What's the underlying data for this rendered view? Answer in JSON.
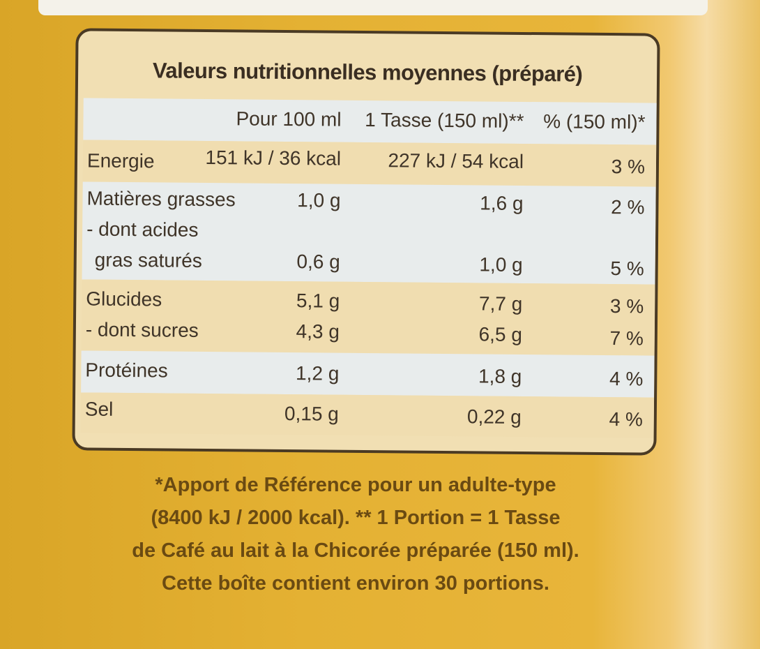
{
  "table": {
    "title": "Valeurs nutritionnelles moyennes (préparé)",
    "headers": [
      "Pour 100 ml",
      "1 Tasse (150 ml)**",
      "% (150 ml)*"
    ],
    "rows": [
      {
        "label": "Energie",
        "per100": "151 kJ / 36 kcal",
        "perCup": "227 kJ / 54 kcal",
        "pct": "3 %"
      },
      {
        "label": "Matières grasses",
        "per100": "1,0 g",
        "perCup": "1,6 g",
        "pct": "2 %"
      },
      {
        "label": "- dont acides",
        "per100": "",
        "perCup": "",
        "pct": ""
      },
      {
        "label": "gras saturés",
        "per100": "0,6 g",
        "perCup": "1,0 g",
        "pct": "5 %"
      },
      {
        "label": "Glucides",
        "per100": "5,1 g",
        "perCup": "7,7 g",
        "pct": "3 %"
      },
      {
        "label": "- dont sucres",
        "per100": "4,3 g",
        "perCup": "6,5 g",
        "pct": "7 %"
      },
      {
        "label": "Protéines",
        "per100": "1,2 g",
        "perCup": "1,8 g",
        "pct": "4 %"
      },
      {
        "label": "Sel",
        "per100": "0,15 g",
        "perCup": "0,22 g",
        "pct": "4 %"
      }
    ]
  },
  "footnote": {
    "line1": "*Apport de Référence pour un adulte-type",
    "line2": "(8400 kJ / 2000 kcal). ** 1 Portion = 1 Tasse",
    "line3": "de Café au lait à la Chicorée préparée (150 ml).",
    "line4": "Cette boîte contient environ 30 portions."
  },
  "colors": {
    "packaging": "#e4b133",
    "panel_border": "#4a3a24",
    "row_light": "#e8ecec",
    "row_tan": "#f0ddb0",
    "footnote_text": "#6a4a12"
  }
}
